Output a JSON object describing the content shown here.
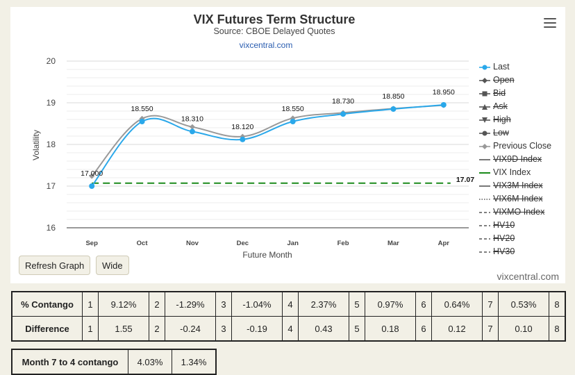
{
  "chart_data": {
    "type": "line",
    "title": "VIX Futures Term Structure",
    "subtitle": "Source: CBOE Delayed Quotes",
    "source_link": "vixcentral.com",
    "xlabel": "Future Month",
    "ylabel": "Volatility",
    "categories": [
      "Sep",
      "Oct",
      "Nov",
      "Dec",
      "Jan",
      "Feb",
      "Mar",
      "Apr"
    ],
    "ylim": [
      16,
      20
    ],
    "yticks": [
      "20",
      "19",
      "18",
      "17",
      "16"
    ],
    "grid": true,
    "legend_position": "right",
    "series": [
      {
        "name": "Last",
        "values": [
          17.0,
          18.55,
          18.31,
          18.12,
          18.55,
          18.73,
          18.85,
          18.95
        ],
        "color": "#2aa8ea",
        "labels": [
          "17.000",
          "18.550",
          "18.310",
          "18.120",
          "18.550",
          "18.730",
          "18.850",
          "18.950"
        ]
      },
      {
        "name": "Previous Close",
        "values": [
          17.24,
          18.62,
          18.42,
          18.19,
          18.63,
          18.76,
          18.86,
          18.94
        ],
        "color": "#999999"
      },
      {
        "name": "VIX Index",
        "values": [
          17.07,
          17.07,
          17.07,
          17.07,
          17.07,
          17.07,
          17.07,
          17.07
        ],
        "color": "#1a8a1a",
        "end_label": "17.07"
      }
    ],
    "legend": [
      {
        "name": "Last",
        "style": "line-dot",
        "color": "#2aa8ea",
        "visible": true
      },
      {
        "name": "Open",
        "style": "line-diamond",
        "color": "#555555",
        "visible": false
      },
      {
        "name": "Bid",
        "style": "line-square",
        "color": "#555555",
        "visible": false
      },
      {
        "name": "Ask",
        "style": "line-triangle",
        "color": "#555555",
        "visible": false
      },
      {
        "name": "High",
        "style": "line-triangle-down",
        "color": "#555555",
        "visible": false
      },
      {
        "name": "Low",
        "style": "line-dot",
        "color": "#555555",
        "visible": false
      },
      {
        "name": "Previous Close",
        "style": "line-diamond",
        "color": "#999999",
        "visible": true
      },
      {
        "name": "VIX9D Index",
        "style": "solid",
        "color": "#555555",
        "visible": false
      },
      {
        "name": "VIX Index",
        "style": "solid",
        "color": "#1a8a1a",
        "visible": true
      },
      {
        "name": "VIX3M Index",
        "style": "solid",
        "color": "#555555",
        "visible": false
      },
      {
        "name": "VIX6M Index",
        "style": "dotted",
        "color": "#555555",
        "visible": false
      },
      {
        "name": "VIXMO Index",
        "style": "dashed",
        "color": "#555555",
        "visible": false
      },
      {
        "name": "HV10",
        "style": "dashed",
        "color": "#555555",
        "visible": false
      },
      {
        "name": "HV20",
        "style": "dashed",
        "color": "#555555",
        "visible": false
      },
      {
        "name": "HV30",
        "style": "dashed",
        "color": "#555555",
        "visible": false
      }
    ]
  },
  "buttons": {
    "refresh": "Refresh Graph",
    "wide": "Wide"
  },
  "watermark": "vixcentral.com",
  "contango_table": {
    "rows": [
      {
        "label": "% Contango",
        "cells": [
          [
            "1",
            "9.12%"
          ],
          [
            "2",
            "-1.29%"
          ],
          [
            "3",
            "-1.04%"
          ],
          [
            "4",
            "2.37%"
          ],
          [
            "5",
            "0.97%"
          ],
          [
            "6",
            "0.64%"
          ],
          [
            "7",
            "0.53%"
          ],
          [
            "8",
            ""
          ]
        ]
      },
      {
        "label": "Difference",
        "cells": [
          [
            "1",
            "1.55"
          ],
          [
            "2",
            "-0.24"
          ],
          [
            "3",
            "-0.19"
          ],
          [
            "4",
            "0.43"
          ],
          [
            "5",
            "0.18"
          ],
          [
            "6",
            "0.12"
          ],
          [
            "7",
            "0.10"
          ],
          [
            "8",
            ""
          ]
        ]
      }
    ]
  },
  "m74_table": {
    "label": "Month 7 to 4 contango",
    "value1": "4.03%",
    "value2": "1.34%"
  }
}
